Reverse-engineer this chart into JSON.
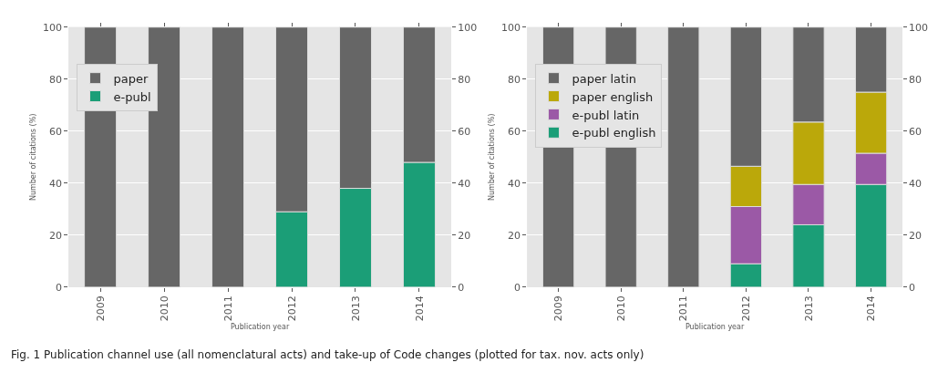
{
  "chart_data": [
    {
      "type": "bar",
      "stacked": true,
      "categories": [
        "2009",
        "2010",
        "2011",
        "2012",
        "2013",
        "2014"
      ],
      "xlabel": "Publication year",
      "ylabel": "Number of citations (%)",
      "ylim": [
        0,
        100
      ],
      "yticks": [
        0,
        20,
        40,
        60,
        80,
        100
      ],
      "y2lim": [
        0,
        100
      ],
      "y2ticks": [
        0,
        20,
        40,
        60,
        80,
        100
      ],
      "grid": "y",
      "legend": "top left",
      "series": [
        {
          "name": "e-publ",
          "color": "#1b9e77",
          "values": [
            0,
            0,
            0,
            29,
            38,
            48
          ]
        },
        {
          "name": "paper",
          "color": "#666666",
          "values": [
            100,
            100,
            100,
            71,
            62,
            52
          ]
        }
      ],
      "annotations": [
        "Fig. 1 Publication channel use (all nomenclatural acts) and take-up of Code changes (plotted for tax. nov. acts only)"
      ]
    },
    {
      "type": "bar",
      "stacked": true,
      "categories": [
        "2009",
        "2010",
        "2011",
        "2012",
        "2013",
        "2014"
      ],
      "xlabel": "Publication year",
      "ylabel": "Number of citations (%)",
      "ylim": [
        0,
        100
      ],
      "yticks": [
        0,
        20,
        40,
        60,
        80,
        100
      ],
      "y2lim": [
        0,
        100
      ],
      "y2ticks": [
        0,
        20,
        40,
        60,
        80,
        100
      ],
      "grid": "y",
      "legend": "top left",
      "series": [
        {
          "name": "e-publ english",
          "color": "#1b9e77",
          "values": [
            0,
            0,
            0,
            9,
            24,
            39.5
          ]
        },
        {
          "name": "e-publ latin",
          "color": "#9b59a6",
          "values": [
            0,
            0,
            0,
            22,
            15.5,
            12
          ]
        },
        {
          "name": "paper english",
          "color": "#bba80a",
          "values": [
            0,
            0,
            0,
            15.5,
            24,
            23.5
          ]
        },
        {
          "name": "paper latin",
          "color": "#666666",
          "values": [
            100,
            100,
            100,
            53.5,
            36.5,
            25
          ]
        }
      ]
    }
  ]
}
